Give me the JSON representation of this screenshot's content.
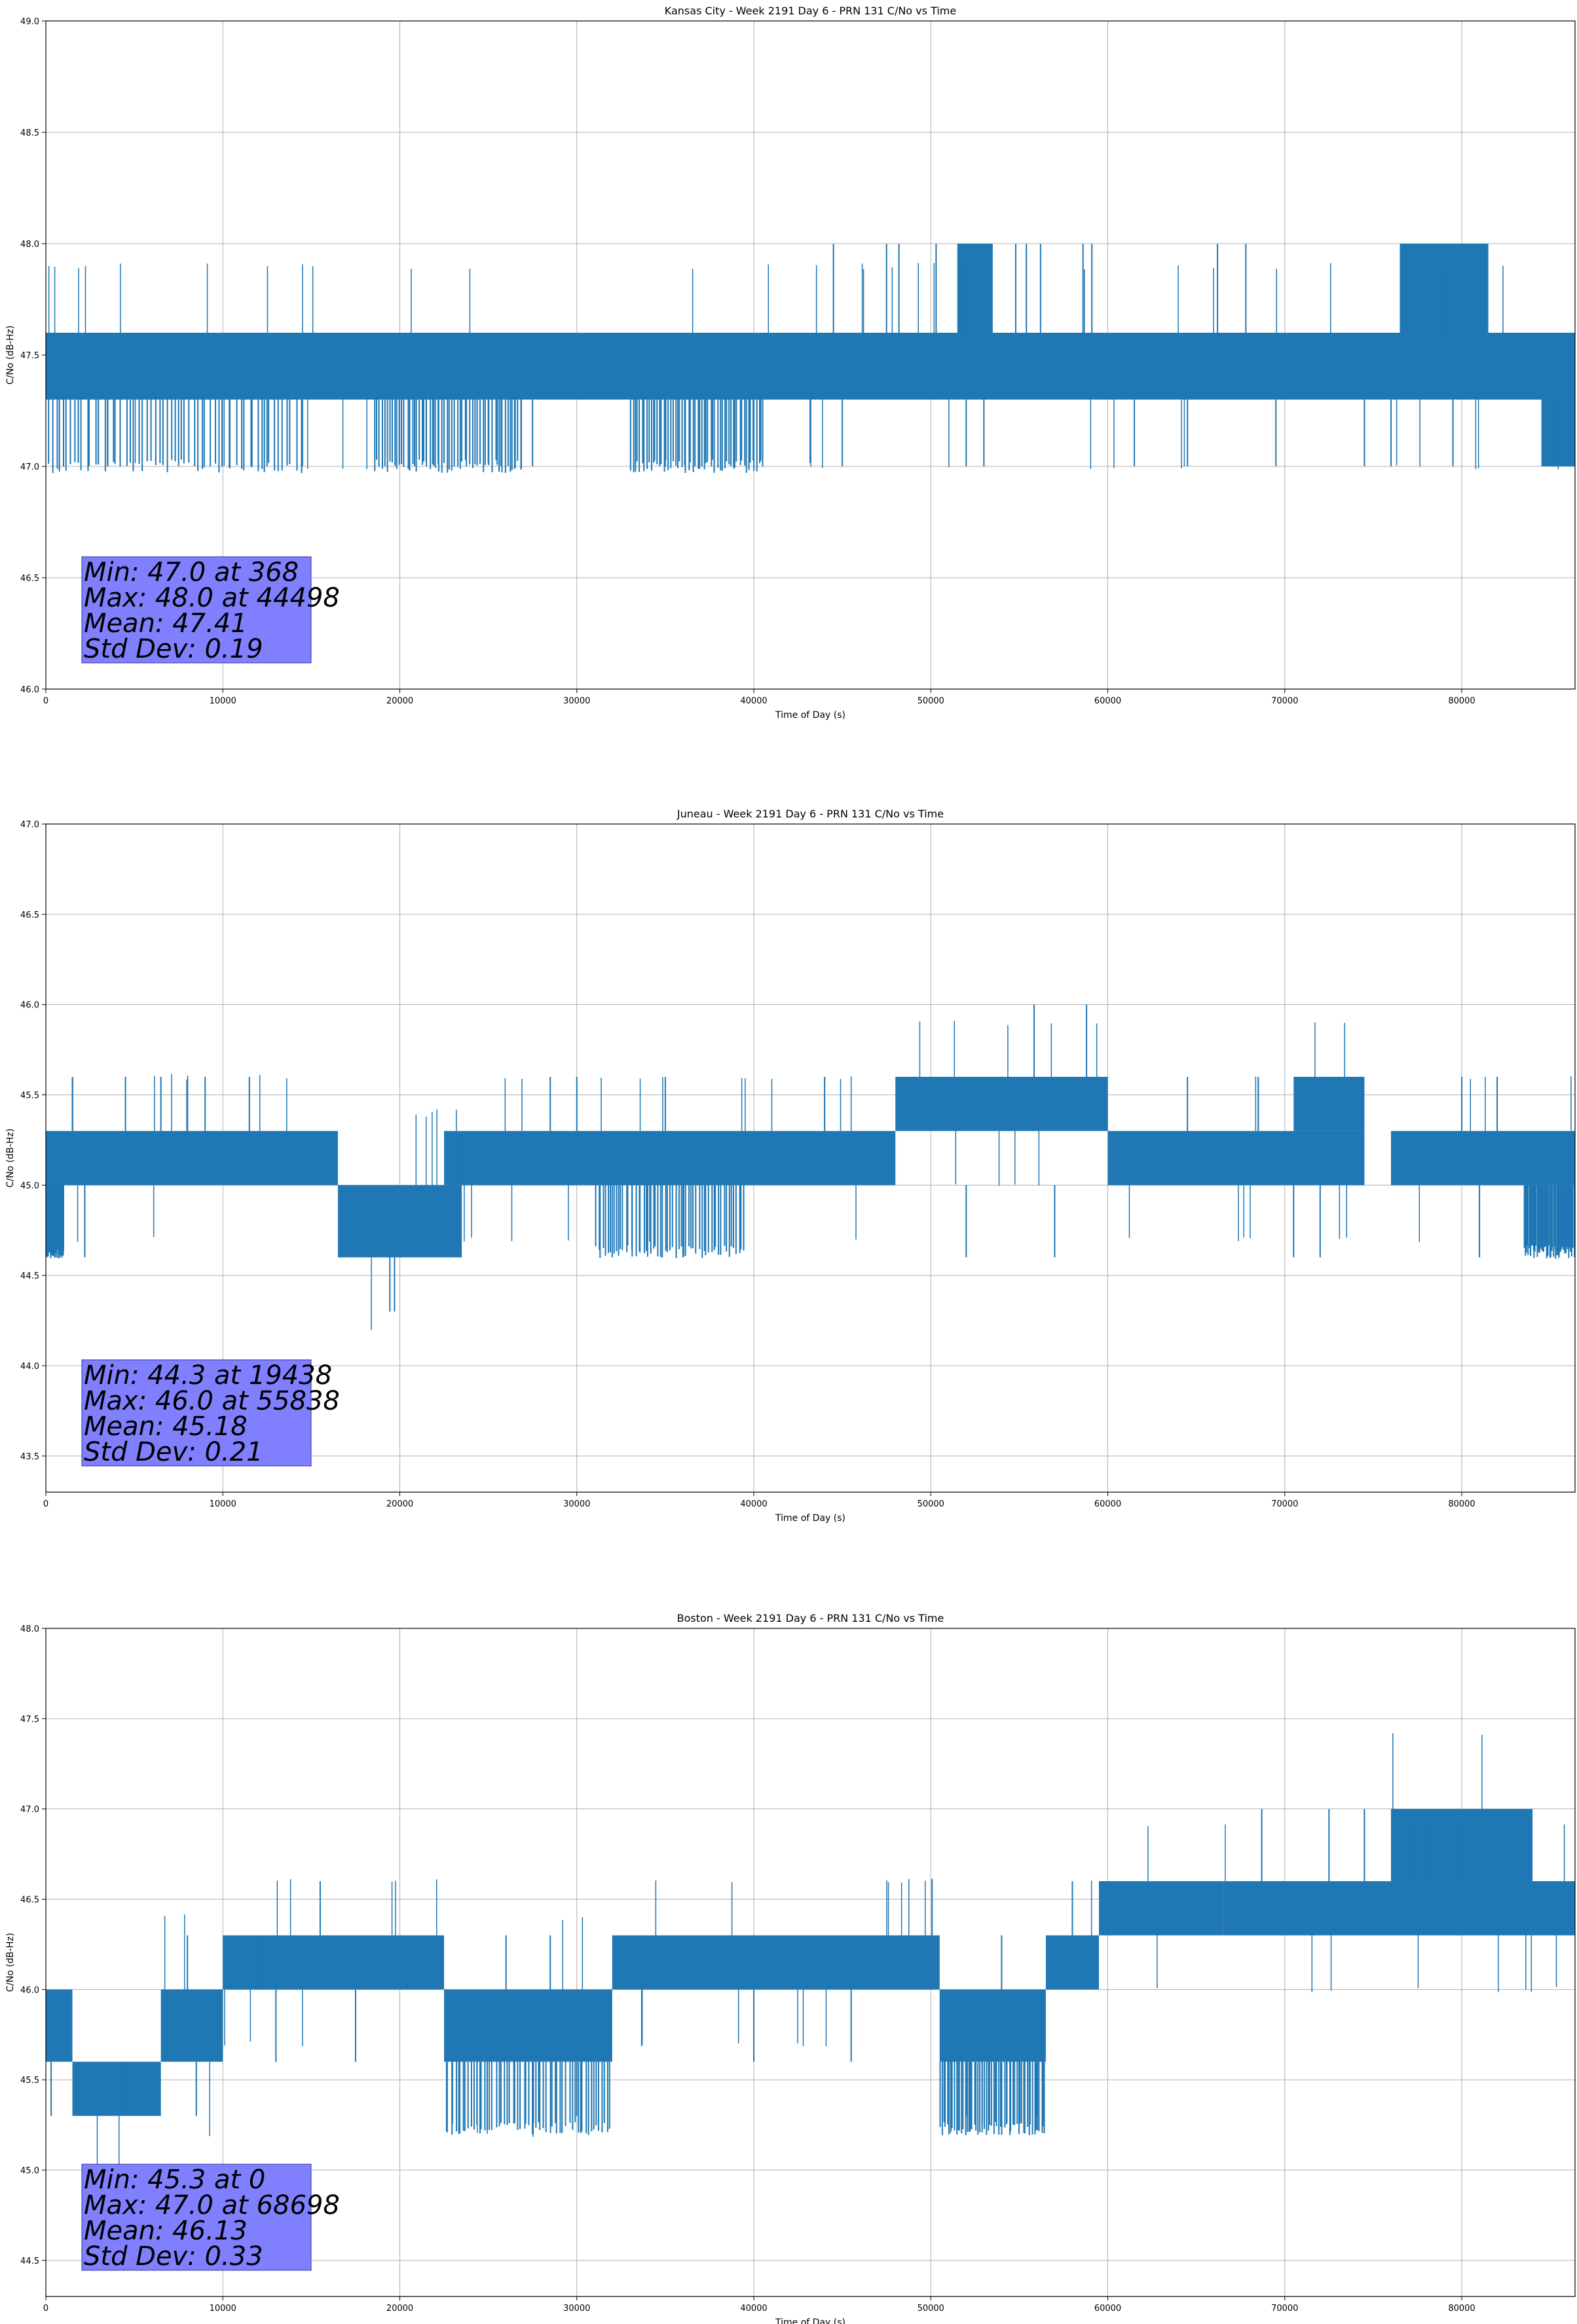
{
  "chart_data": [
    {
      "type": "line",
      "title": "Kansas City - Week 2191 Day 6 - PRN 131 C/No vs Time",
      "xlabel": "Time of Day (s)",
      "ylabel": "C/No (dB-Hz)",
      "xlim": [
        0,
        86400
      ],
      "ylim": [
        46.0,
        49.0
      ],
      "xticks": [
        0,
        10000,
        20000,
        30000,
        40000,
        50000,
        60000,
        70000,
        80000
      ],
      "yticks": [
        46.0,
        46.5,
        47.0,
        47.5,
        48.0,
        48.5,
        49.0
      ],
      "grid": true,
      "series_color": "#1f77b4",
      "stats_box_color": "#8080ff",
      "stats": [
        "Min: 47.0 at 368",
        "Max: 48.0 at 44498",
        "Mean: 47.41",
        "Std Dev: 0.19"
      ],
      "series": [
        {
          "band_segments": [
            {
              "x": [
                0,
                86400
              ],
              "y": [
                47.3,
                47.6
              ]
            },
            {
              "x": [
                51500,
                53500
              ],
              "y": [
                47.6,
                48.0
              ]
            },
            {
              "x": [
                76500,
                81500
              ],
              "y": [
                47.6,
                48.0
              ]
            },
            {
              "x": [
                84500,
                86400
              ],
              "y": [
                47.0,
                47.3
              ]
            }
          ],
          "spikes": [
            [
              44500,
              47.6,
              48.0
            ],
            [
              47500,
              47.6,
              48.0
            ],
            [
              48200,
              47.6,
              48.0
            ],
            [
              50300,
              47.6,
              48.0
            ],
            [
              54800,
              47.6,
              48.0
            ],
            [
              55400,
              47.6,
              48.0
            ],
            [
              56200,
              47.6,
              48.0
            ],
            [
              58600,
              47.6,
              48.0
            ],
            [
              59100,
              47.6,
              48.0
            ],
            [
              66200,
              47.6,
              48.0
            ],
            [
              67800,
              47.6,
              48.0
            ]
          ],
          "low_spikes": [
            [
              1000,
              47.0,
              47.3
            ],
            [
              3500,
              47.0,
              47.3
            ],
            [
              7500,
              47.0,
              47.3
            ],
            [
              12500,
              47.0,
              47.3
            ],
            [
              14500,
              47.0,
              47.3
            ],
            [
              21500,
              47.0,
              47.3
            ],
            [
              27500,
              47.0,
              47.3
            ],
            [
              35000,
              47.0,
              47.3
            ],
            [
              40500,
              47.0,
              47.3
            ],
            [
              45000,
              47.0,
              47.3
            ],
            [
              52000,
              47.0,
              47.3
            ],
            [
              53000,
              47.0,
              47.3
            ],
            [
              61500,
              47.0,
              47.3
            ],
            [
              64500,
              47.0,
              47.3
            ],
            [
              69500,
              47.0,
              47.3
            ],
            [
              74500,
              47.0,
              47.3
            ],
            [
              76000,
              47.0,
              47.3
            ],
            [
              79500,
              47.0,
              47.3
            ]
          ],
          "low_dense": [
            [
              0,
              14500
            ],
            [
              18500,
              27000
            ],
            [
              33000,
              40500
            ]
          ]
        }
      ]
    },
    {
      "type": "line",
      "title": "Juneau - Week 2191 Day 6 - PRN 131 C/No vs Time",
      "xlabel": "Time of Day (s)",
      "ylabel": "C/No (dB-Hz)",
      "xlim": [
        0,
        86400
      ],
      "ylim": [
        43.3,
        47.0
      ],
      "xticks": [
        0,
        10000,
        20000,
        30000,
        40000,
        50000,
        60000,
        70000,
        80000
      ],
      "yticks": [
        43.5,
        44.0,
        44.5,
        45.0,
        45.5,
        46.0,
        46.5,
        47.0
      ],
      "grid": true,
      "series_color": "#1f77b4",
      "stats_box_color": "#8080ff",
      "stats": [
        "Min: 44.3 at 19438",
        "Max: 46.0 at 55838",
        "Mean: 45.18",
        "Std Dev: 0.21"
      ],
      "series": [
        {
          "band_segments": [
            {
              "x": [
                0,
                16500
              ],
              "y": [
                45.0,
                45.3
              ]
            },
            {
              "x": [
                16500,
                23500
              ],
              "y": [
                44.6,
                45.0
              ]
            },
            {
              "x": [
                22500,
                48000
              ],
              "y": [
                45.0,
                45.3
              ]
            },
            {
              "x": [
                48000,
                60000
              ],
              "y": [
                45.3,
                45.6
              ]
            },
            {
              "x": [
                60000,
                74500
              ],
              "y": [
                45.0,
                45.3
              ]
            },
            {
              "x": [
                70500,
                74500
              ],
              "y": [
                45.3,
                45.6
              ]
            },
            {
              "x": [
                76000,
                86400
              ],
              "y": [
                45.0,
                45.3
              ]
            }
          ],
          "spikes": [
            [
              55838,
              45.6,
              46.0
            ],
            [
              58800,
              45.6,
              46.0
            ],
            [
              1500,
              45.3,
              45.6
            ],
            [
              4500,
              45.3,
              45.6
            ],
            [
              6500,
              45.3,
              45.6
            ],
            [
              9000,
              45.3,
              45.6
            ],
            [
              11500,
              45.3,
              45.6
            ],
            [
              28500,
              45.3,
              45.6
            ],
            [
              30000,
              45.3,
              45.6
            ],
            [
              35000,
              45.3,
              45.6
            ],
            [
              44000,
              45.3,
              45.6
            ],
            [
              64500,
              45.3,
              45.6
            ],
            [
              68500,
              45.3,
              45.6
            ],
            [
              80000,
              45.3,
              45.6
            ],
            [
              82000,
              45.3,
              45.6
            ]
          ],
          "low_spikes": [
            [
              19438,
              44.3,
              44.6
            ],
            [
              19700,
              44.3,
              44.6
            ],
            [
              500,
              44.6,
              45.0
            ],
            [
              2200,
              44.6,
              45.0
            ],
            [
              32000,
              44.6,
              45.0
            ],
            [
              36000,
              44.6,
              45.0
            ],
            [
              52000,
              44.6,
              45.0
            ],
            [
              57000,
              44.6,
              45.0
            ],
            [
              70500,
              44.6,
              45.0
            ],
            [
              72000,
              44.6,
              45.0
            ],
            [
              81000,
              44.6,
              45.0
            ],
            [
              85000,
              44.6,
              45.0
            ]
          ],
          "low_dense": [
            [
              31000,
              39500
            ],
            [
              0,
              1000
            ],
            [
              83500,
              86400
            ]
          ]
        }
      ]
    },
    {
      "type": "line",
      "title": "Boston - Week 2191 Day 6 - PRN 131 C/No vs Time",
      "xlabel": "Time of Day (s)",
      "ylabel": "C/No (dB-Hz)",
      "xlim": [
        0,
        86400
      ],
      "ylim": [
        44.3,
        48.0
      ],
      "xticks": [
        0,
        10000,
        20000,
        30000,
        40000,
        50000,
        60000,
        70000,
        80000
      ],
      "yticks": [
        44.5,
        45.0,
        45.5,
        46.0,
        46.5,
        47.0,
        47.5,
        48.0
      ],
      "grid": true,
      "series_color": "#1f77b4",
      "stats_box_color": "#8080ff",
      "stats": [
        "Min: 45.3 at 0",
        "Max: 47.0 at 68698",
        "Mean: 46.13",
        "Std Dev: 0.33"
      ],
      "series": [
        {
          "band_segments": [
            {
              "x": [
                0,
                1500
              ],
              "y": [
                45.6,
                46.0
              ]
            },
            {
              "x": [
                1500,
                6500
              ],
              "y": [
                45.3,
                45.6
              ]
            },
            {
              "x": [
                6500,
                10000
              ],
              "y": [
                45.6,
                46.0
              ]
            },
            {
              "x": [
                10000,
                22500
              ],
              "y": [
                46.0,
                46.3
              ]
            },
            {
              "x": [
                22500,
                32000
              ],
              "y": [
                45.6,
                46.0
              ]
            },
            {
              "x": [
                32000,
                50500
              ],
              "y": [
                46.0,
                46.3
              ]
            },
            {
              "x": [
                50500,
                56500
              ],
              "y": [
                45.6,
                46.0
              ]
            },
            {
              "x": [
                56500,
                59500
              ],
              "y": [
                46.0,
                46.3
              ]
            },
            {
              "x": [
                59500,
                66500
              ],
              "y": [
                46.3,
                46.6
              ]
            },
            {
              "x": [
                66500,
                86400
              ],
              "y": [
                46.3,
                46.6
              ]
            },
            {
              "x": [
                76000,
                84000
              ],
              "y": [
                46.6,
                47.0
              ]
            }
          ],
          "spikes": [
            [
              15500,
              46.3,
              46.6
            ],
            [
              68698,
              46.6,
              47.0
            ],
            [
              72500,
              46.6,
              47.0
            ],
            [
              74500,
              46.6,
              47.0
            ],
            [
              8000,
              46.0,
              46.3
            ],
            [
              12000,
              46.0,
              46.3
            ],
            [
              26000,
              46.0,
              46.3
            ],
            [
              28500,
              46.0,
              46.3
            ],
            [
              54000,
              46.0,
              46.3
            ],
            [
              58000,
              46.3,
              46.6
            ]
          ],
          "low_spikes": [
            [
              300,
              45.3,
              45.6
            ],
            [
              4500,
              45.3,
              45.6
            ],
            [
              8500,
              45.3,
              45.6
            ],
            [
              30000,
              45.3,
              45.6
            ],
            [
              52000,
              45.3,
              45.6
            ],
            [
              55000,
              45.3,
              45.6
            ],
            [
              56000,
              45.3,
              45.6
            ],
            [
              13000,
              45.6,
              46.0
            ],
            [
              17500,
              45.6,
              46.0
            ],
            [
              40000,
              45.6,
              46.0
            ],
            [
              45500,
              45.6,
              46.0
            ]
          ],
          "low_dense": [
            [
              22500,
              32000
            ],
            [
              50500,
              56500
            ]
          ]
        }
      ]
    }
  ]
}
